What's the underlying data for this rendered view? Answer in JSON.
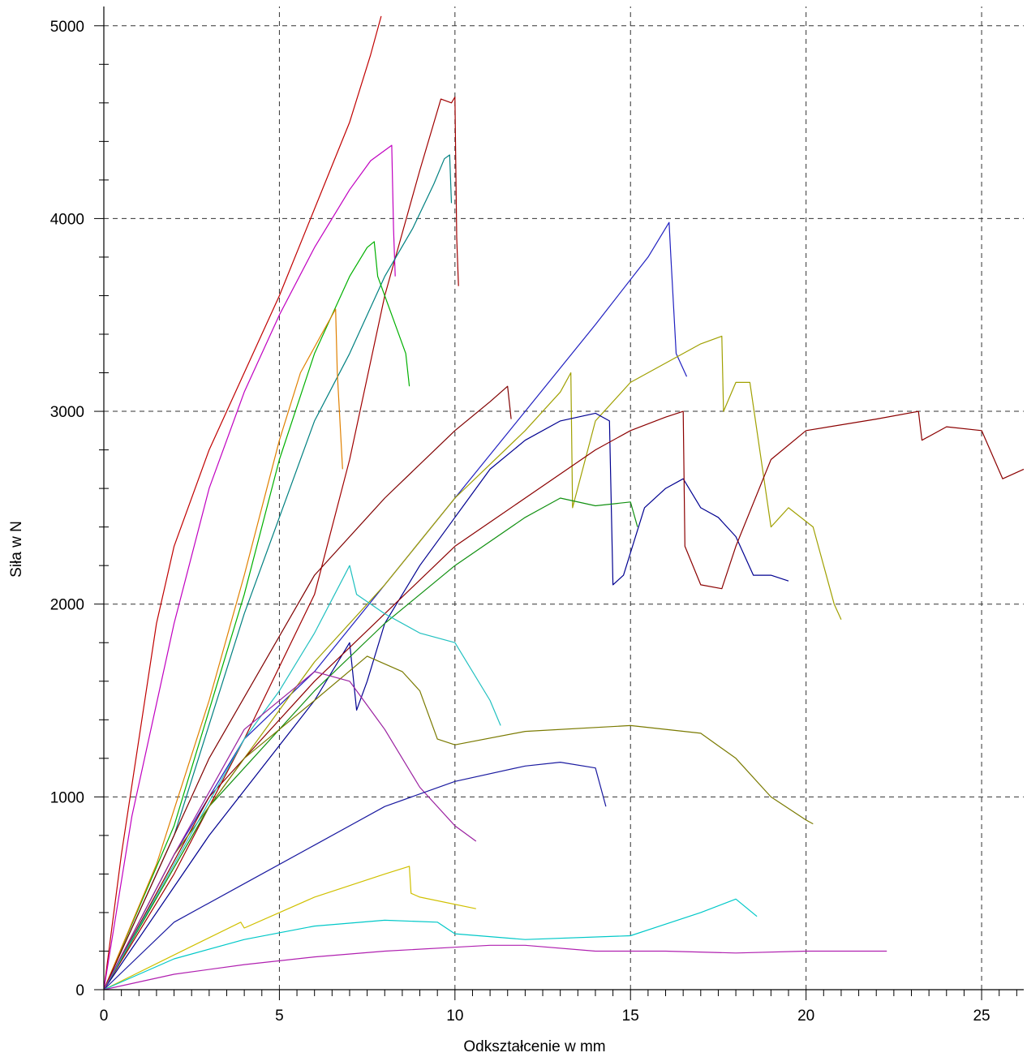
{
  "chart_data": {
    "type": "line",
    "title": "",
    "xlabel": "Odkształcenie w mm",
    "ylabel": "Siła w N",
    "xlim": [
      0,
      26.2
    ],
    "ylim": [
      0,
      5100
    ],
    "xticks": [
      0,
      5,
      10,
      15,
      20,
      25
    ],
    "yticks": [
      0,
      1000,
      2000,
      3000,
      4000,
      5000
    ],
    "grid": true,
    "series": [
      {
        "color": "#c00000",
        "x": [
          0,
          0.5,
          1.5,
          2,
          3,
          4,
          5,
          6,
          7,
          7.6,
          7.9
        ],
        "y": [
          0,
          700,
          1900,
          2300,
          2800,
          3200,
          3600,
          4050,
          4500,
          4850,
          5050
        ]
      },
      {
        "color": "#a00000",
        "x": [
          0,
          2,
          4,
          6,
          7,
          8,
          9,
          9.6,
          9.9,
          10.0,
          10.05,
          10.1
        ],
        "y": [
          0,
          600,
          1300,
          2050,
          2750,
          3600,
          4250,
          4620,
          4600,
          4630,
          3900,
          3650
        ]
      },
      {
        "color": "#c000c0",
        "x": [
          0,
          0.8,
          2,
          3,
          4,
          5,
          6,
          7,
          7.6,
          8.2,
          8.25,
          8.3
        ],
        "y": [
          0,
          900,
          1900,
          2600,
          3100,
          3500,
          3850,
          4150,
          4300,
          4380,
          3950,
          3700
        ]
      },
      {
        "color": "#008080",
        "x": [
          0,
          2,
          4,
          6,
          7,
          8,
          8.8,
          9.4,
          9.7,
          9.85,
          9.9
        ],
        "y": [
          0,
          800,
          1950,
          2950,
          3300,
          3700,
          3950,
          4180,
          4310,
          4330,
          4080
        ]
      },
      {
        "color": "#00b000",
        "x": [
          0,
          2,
          4,
          5,
          6,
          7,
          7.5,
          7.7,
          7.8,
          8.2,
          8.6,
          8.7
        ],
        "y": [
          0,
          850,
          2050,
          2750,
          3300,
          3700,
          3850,
          3880,
          3700,
          3500,
          3300,
          3130
        ]
      },
      {
        "color": "#e08000",
        "x": [
          0,
          1.5,
          3,
          4,
          5,
          5.6,
          6.2,
          6.6,
          6.65,
          6.8
        ],
        "y": [
          0,
          650,
          1500,
          2150,
          2850,
          3200,
          3400,
          3530,
          3200,
          2700
        ]
      },
      {
        "color": "#2020c0",
        "x": [
          0,
          2,
          4,
          6,
          8,
          10,
          12,
          14,
          15.5,
          16.1,
          16.15,
          16.3,
          16.6
        ],
        "y": [
          0,
          700,
          1300,
          1650,
          2100,
          2550,
          3000,
          3450,
          3800,
          3980,
          3800,
          3300,
          3180
        ]
      },
      {
        "color": "#a0a000",
        "x": [
          0,
          3,
          6,
          8,
          10,
          12,
          13,
          13.3,
          13.35,
          14,
          15,
          16,
          17,
          17.6,
          17.65,
          18,
          18.4,
          19,
          19.5,
          20.2,
          20.8,
          21
        ],
        "y": [
          0,
          950,
          1700,
          2100,
          2550,
          2900,
          3100,
          3200,
          2500,
          2950,
          3150,
          3250,
          3350,
          3390,
          3000,
          3150,
          3150,
          2400,
          2500,
          2400,
          2000,
          1920
        ]
      },
      {
        "color": "#800000",
        "x": [
          0,
          3,
          6,
          8,
          10,
          11,
          11.5,
          11.6
        ],
        "y": [
          0,
          1200,
          2150,
          2550,
          2900,
          3050,
          3130,
          2960
        ]
      },
      {
        "color": "#000090",
        "x": [
          0,
          3,
          6,
          7,
          7.2,
          7.5,
          8,
          9,
          10,
          11,
          12,
          13,
          14,
          14.4,
          14.5,
          14.8,
          15.4,
          16,
          16.5,
          17,
          17.5,
          18,
          18.5,
          19,
          19.5
        ],
        "y": [
          0,
          800,
          1500,
          1800,
          1450,
          1600,
          1900,
          2200,
          2450,
          2700,
          2850,
          2950,
          2990,
          2950,
          2100,
          2150,
          2500,
          2600,
          2650,
          2500,
          2450,
          2350,
          2150,
          2150,
          2120
        ]
      },
      {
        "color": "#8b0000",
        "x": [
          0,
          3,
          6,
          8,
          10,
          12,
          14,
          15,
          16,
          16.5,
          16.55,
          17,
          17.6,
          18,
          19,
          20,
          22,
          23.2,
          23.3,
          24,
          25,
          25.6,
          26.2
        ],
        "y": [
          0,
          1000,
          1600,
          1950,
          2300,
          2550,
          2800,
          2900,
          2970,
          3000,
          2300,
          2100,
          2080,
          2300,
          2750,
          2900,
          2960,
          3000,
          2850,
          2920,
          2900,
          2650,
          2700
        ]
      },
      {
        "color": "#109010",
        "x": [
          0,
          3,
          6,
          8,
          10,
          12,
          13,
          14,
          15,
          15.2
        ],
        "y": [
          0,
          950,
          1550,
          1900,
          2200,
          2450,
          2550,
          2510,
          2530,
          2400
        ]
      },
      {
        "color": "#7a7a00",
        "x": [
          0,
          2,
          4,
          6,
          7.5,
          8.5,
          9,
          9.5,
          10,
          12,
          15,
          17,
          18,
          19,
          20,
          20.2
        ],
        "y": [
          0,
          700,
          1200,
          1500,
          1730,
          1650,
          1550,
          1300,
          1270,
          1340,
          1370,
          1330,
          1200,
          1000,
          880,
          860
        ]
      },
      {
        "color": "#20c0c0",
        "x": [
          0,
          2,
          4,
          5,
          6,
          7,
          7.2,
          8,
          9,
          10,
          11,
          11.3
        ],
        "y": [
          0,
          650,
          1300,
          1550,
          1850,
          2200,
          2050,
          1950,
          1850,
          1800,
          1500,
          1370
        ]
      },
      {
        "color": "#9a20a0",
        "x": [
          0,
          2,
          4,
          6,
          7,
          7.4,
          8,
          9,
          10,
          10.6
        ],
        "y": [
          0,
          700,
          1350,
          1650,
          1600,
          1500,
          1350,
          1050,
          850,
          770
        ]
      },
      {
        "color": "#1a1aa0",
        "x": [
          0,
          2,
          4,
          6,
          8,
          10,
          12,
          13,
          14,
          14.3
        ],
        "y": [
          0,
          350,
          550,
          750,
          950,
          1080,
          1160,
          1180,
          1150,
          950
        ]
      },
      {
        "color": "#d0c000",
        "x": [
          0,
          2,
          3.9,
          4,
          6,
          8,
          8.7,
          8.75,
          9,
          10.6
        ],
        "y": [
          0,
          180,
          350,
          320,
          480,
          600,
          640,
          500,
          480,
          420
        ]
      },
      {
        "color": "#00c8c8",
        "x": [
          0,
          2,
          4,
          6,
          8,
          9.5,
          10,
          12,
          15,
          17,
          18,
          18.6
        ],
        "y": [
          0,
          160,
          260,
          330,
          360,
          350,
          290,
          260,
          280,
          400,
          470,
          380
        ]
      },
      {
        "color": "#b020b0",
        "x": [
          0,
          2,
          4,
          6,
          8,
          10,
          11,
          12,
          14,
          16,
          18,
          20,
          22.3
        ],
        "y": [
          0,
          80,
          130,
          170,
          200,
          220,
          230,
          230,
          200,
          200,
          190,
          200,
          200
        ]
      }
    ]
  }
}
